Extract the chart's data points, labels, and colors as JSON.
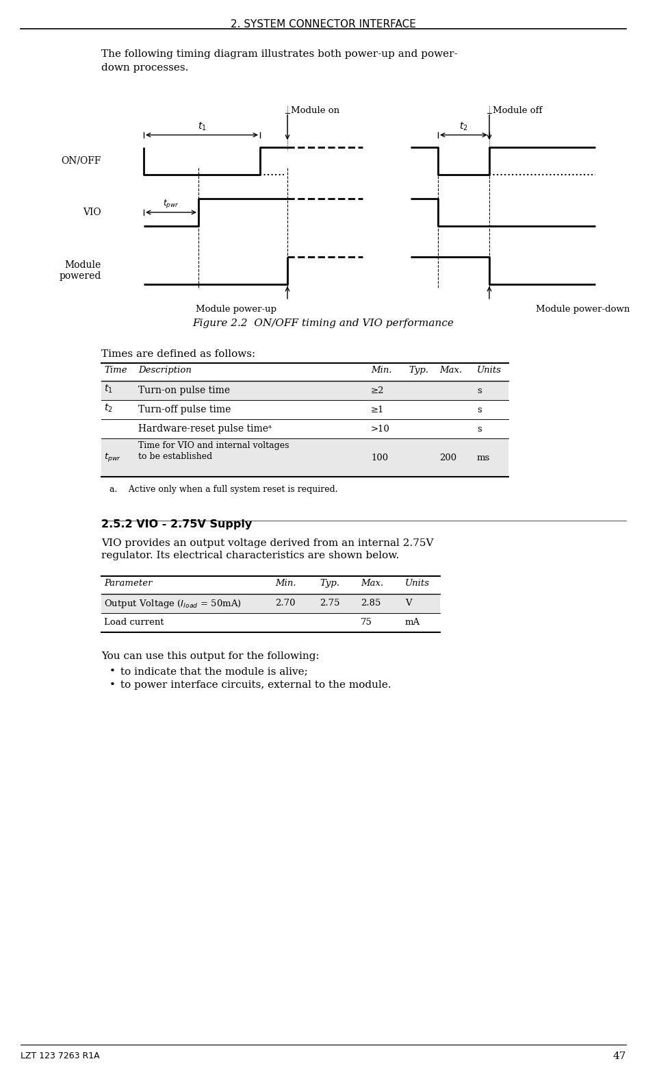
{
  "page_title": "2. SYSTEM CONNECTOR INTERFACE",
  "page_number": "47",
  "footer_left": "LZT 123 7263 R1A",
  "intro_text": "The following timing diagram illustrates both power-up and power-\ndown processes.",
  "figure_caption": "Figure 2.2  ON/OFF timing and VIO performance",
  "times_intro": "Times are defined as follows:",
  "section_title": "2.5.2 VIO - 2.75V Supply",
  "section_body": "VIO provides an output voltage derived from an internal 2.75V\nregulator. Its electrical characteristics are shown below.",
  "bullets": [
    "to indicate that the module is alive;",
    "to power interface circuits, external to the module."
  ],
  "bullets_intro": "You can use this output for the following:",
  "times_table_header": [
    "Time",
    "Description",
    "Min.",
    "Typ.",
    "Max.",
    "Units"
  ],
  "times_table_rows": [
    [
      "t1",
      "Turn-on pulse time",
      "≥2",
      "",
      "",
      "s"
    ],
    [
      "t2",
      "Turn-off pulse time",
      "≥1",
      "",
      "",
      "s"
    ],
    [
      "",
      "Hardware-reset pulse timeᵃ",
      ">10",
      "",
      "",
      "s"
    ],
    [
      "tpwr",
      "Time for VIO and internal voltages\nto be established",
      "100",
      "",
      "200",
      "ms"
    ]
  ],
  "footnote": "a.  Active only when a full system reset is required.",
  "param_table_header": [
    "Parameter",
    "Min.",
    "Typ.",
    "Max.",
    "Units"
  ],
  "param_table_rows": [
    [
      "Output Voltage (Iₗₒₐₑ = 50mA)",
      "2.70",
      "2.75",
      "2.85",
      "V"
    ],
    [
      "Load current",
      "",
      "",
      "75",
      "mA"
    ]
  ],
  "bg_color": "#ffffff",
  "text_color": "#000000",
  "table_header_color": "#ffffff",
  "table_row_color": "#e8e8e8",
  "table_alt_color": "#ffffff"
}
